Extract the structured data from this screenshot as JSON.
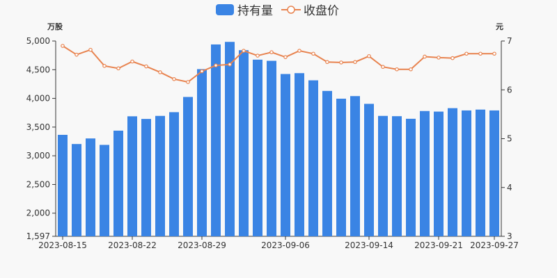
{
  "chart_data": {
    "type": "bar",
    "categories": [
      "2023-08-15",
      "2023-08-16",
      "2023-08-17",
      "2023-08-18",
      "2023-08-21",
      "2023-08-22",
      "2023-08-23",
      "2023-08-24",
      "2023-08-25",
      "2023-08-28",
      "2023-08-29",
      "2023-08-30",
      "2023-08-31",
      "2023-09-01",
      "2023-09-04",
      "2023-09-05",
      "2023-09-06",
      "2023-09-07",
      "2023-09-08",
      "2023-09-11",
      "2023-09-12",
      "2023-09-13",
      "2023-09-14",
      "2023-09-15",
      "2023-09-18",
      "2023-09-19",
      "2023-09-20",
      "2023-09-21",
      "2023-09-22",
      "2023-09-25",
      "2023-09-26",
      "2023-09-27"
    ],
    "x_tick_labels": [
      "2023-08-15",
      "2023-08-22",
      "2023-08-29",
      "2023-09-06",
      "2023-09-14",
      "2023-09-21",
      "2023-09-27"
    ],
    "series": [
      {
        "name": "持有量",
        "type": "bar",
        "axis": "left",
        "color": "#3a84e4",
        "values": [
          3365,
          3205,
          3302,
          3190,
          3438,
          3688,
          3642,
          3695,
          3760,
          4025,
          4510,
          4940,
          4985,
          4840,
          4675,
          4655,
          4425,
          4440,
          4315,
          4130,
          3995,
          4040,
          3905,
          3695,
          3690,
          3645,
          3780,
          3770,
          3830,
          3790,
          3805,
          3790
        ]
      },
      {
        "name": "收盘价",
        "type": "line",
        "axis": "right",
        "color": "#e8834f",
        "values": [
          6.9,
          6.72,
          6.82,
          6.49,
          6.44,
          6.58,
          6.48,
          6.36,
          6.22,
          6.16,
          6.38,
          6.5,
          6.52,
          6.8,
          6.7,
          6.77,
          6.67,
          6.8,
          6.74,
          6.57,
          6.56,
          6.57,
          6.69,
          6.47,
          6.42,
          6.42,
          6.68,
          6.66,
          6.65,
          6.74,
          6.74,
          6.74
        ]
      }
    ],
    "y_left": {
      "unit": "万股",
      "min": 1597,
      "max": 5000,
      "ticks": [
        1597,
        2000,
        2500,
        3000,
        3500,
        4000,
        4500,
        5000
      ],
      "tick_labels": [
        "1,597",
        "2,000",
        "2,500",
        "3,000",
        "3,500",
        "4,000",
        "4,500",
        "5,000"
      ]
    },
    "y_right": {
      "unit": "元",
      "min": 3,
      "max": 7,
      "ticks": [
        3,
        4,
        5,
        6,
        7
      ]
    },
    "legend": {
      "position": "top-center"
    },
    "grid": false
  }
}
